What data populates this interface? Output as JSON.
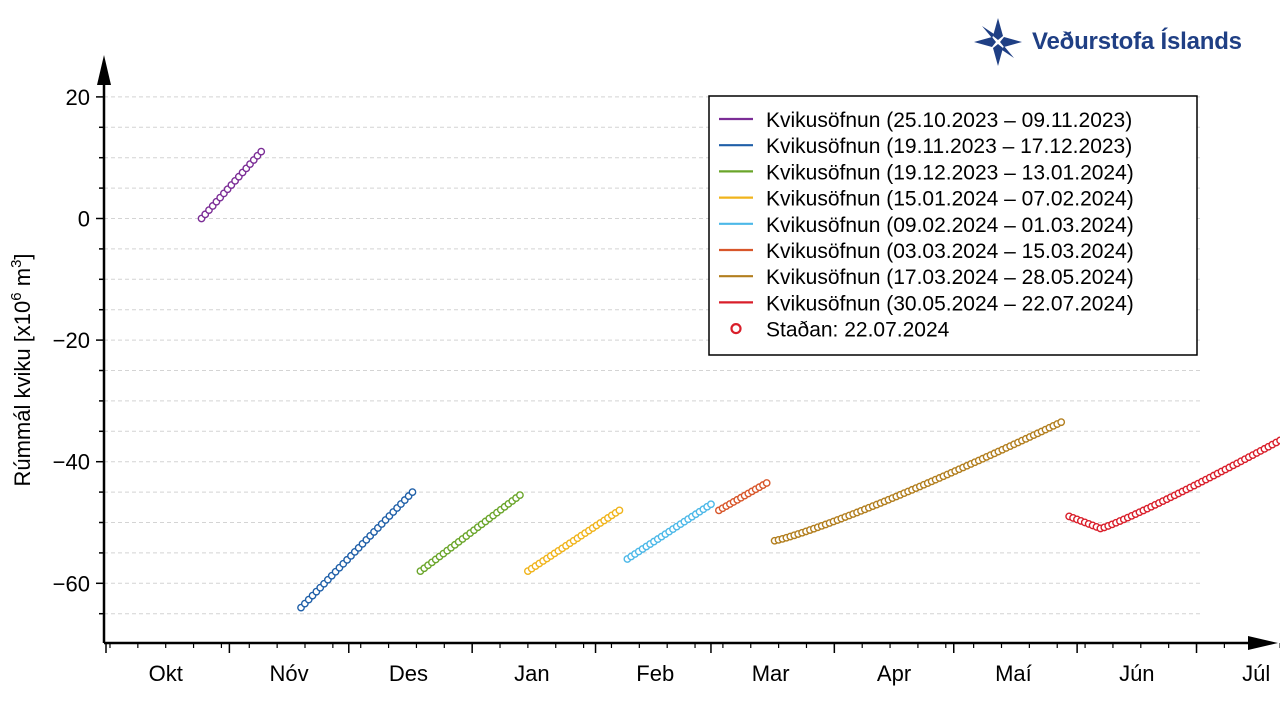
{
  "logo": {
    "text": "Veðurstofa Íslands",
    "color": "#1f3f84"
  },
  "chart_data": {
    "type": "scatter",
    "title": "",
    "ylabel": "Rúmmál kviku [x10",
    "ylabel_exp": "6",
    "ylabel_mid": " m",
    "ylabel_exp2": "3",
    "ylabel_end": "]",
    "ylim": [
      -70,
      20
    ],
    "y_ticks": [
      20,
      0,
      -20,
      -40,
      -60
    ],
    "y_tick_labels": [
      "20",
      "0",
      "−20",
      "−40",
      "−60"
    ],
    "grid": true,
    "legend_position": "top-right",
    "x_range": [
      "2023-10-01",
      "2024-07-31"
    ],
    "month_labels": [
      {
        "date": "2023-10-01",
        "label": "Okt"
      },
      {
        "date": "2023-11-01",
        "label": "Nóv"
      },
      {
        "date": "2023-12-01",
        "label": "Des"
      },
      {
        "date": "2024-01-01",
        "label": "Jan"
      },
      {
        "date": "2024-02-01",
        "label": "Feb"
      },
      {
        "date": "2024-03-01",
        "label": "Mar"
      },
      {
        "date": "2024-04-01",
        "label": "Apr"
      },
      {
        "date": "2024-05-01",
        "label": "Maí"
      },
      {
        "date": "2024-06-01",
        "label": "Jún"
      },
      {
        "date": "2024-07-01",
        "label": "Júl"
      }
    ],
    "series": [
      {
        "name": "Kvikusöfnun (25.10.2023 – 09.11.2023)",
        "color": "#7b2d96",
        "start": "2023-10-25",
        "end": "2023-11-09",
        "y_start": 0,
        "y_end": 11,
        "n": 17
      },
      {
        "name": "Kvikusöfnun (19.11.2023 – 17.12.2023)",
        "color": "#1f5fa8",
        "start": "2023-11-19",
        "end": "2023-12-17",
        "y_start": -64,
        "y_end": -45,
        "n": 30
      },
      {
        "name": "Kvikusöfnun (19.12.2023 – 13.01.2024)",
        "color": "#6aa52a",
        "start": "2023-12-19",
        "end": "2024-01-13",
        "y_start": -58,
        "y_end": -45.5,
        "n": 27
      },
      {
        "name": "Kvikusöfnun (15.01.2024 – 07.02.2024)",
        "color": "#f0b41c",
        "start": "2024-01-15",
        "end": "2024-02-07",
        "y_start": -58,
        "y_end": -48,
        "n": 25
      },
      {
        "name": "Kvikusöfnun (09.02.2024 – 01.03.2024)",
        "color": "#4cb8e8",
        "start": "2024-02-09",
        "end": "2024-03-01",
        "y_start": -56,
        "y_end": -47,
        "n": 23
      },
      {
        "name": "Kvikusöfnun (03.03.2024 – 15.03.2024)",
        "color": "#d8562a",
        "start": "2024-03-03",
        "end": "2024-03-15",
        "y_start": -48,
        "y_end": -43.5,
        "n": 14
      },
      {
        "name": "Kvikusöfnun (17.03.2024 – 28.05.2024)",
        "color": "#b27e1e",
        "start": "2024-03-17",
        "end": "2024-05-28",
        "y_start": -53,
        "y_end": -33.5,
        "n": 74
      },
      {
        "name": "Kvikusöfnun (30.05.2024 – 22.07.2024)",
        "color": "#d91e2a",
        "start": "2024-05-30",
        "end": "2024-07-22",
        "y_start": -49,
        "y_end": -36.5,
        "n": 55
      }
    ],
    "current": {
      "label": "Staðan: 22.07.2024",
      "color": "#d91e2a"
    }
  }
}
